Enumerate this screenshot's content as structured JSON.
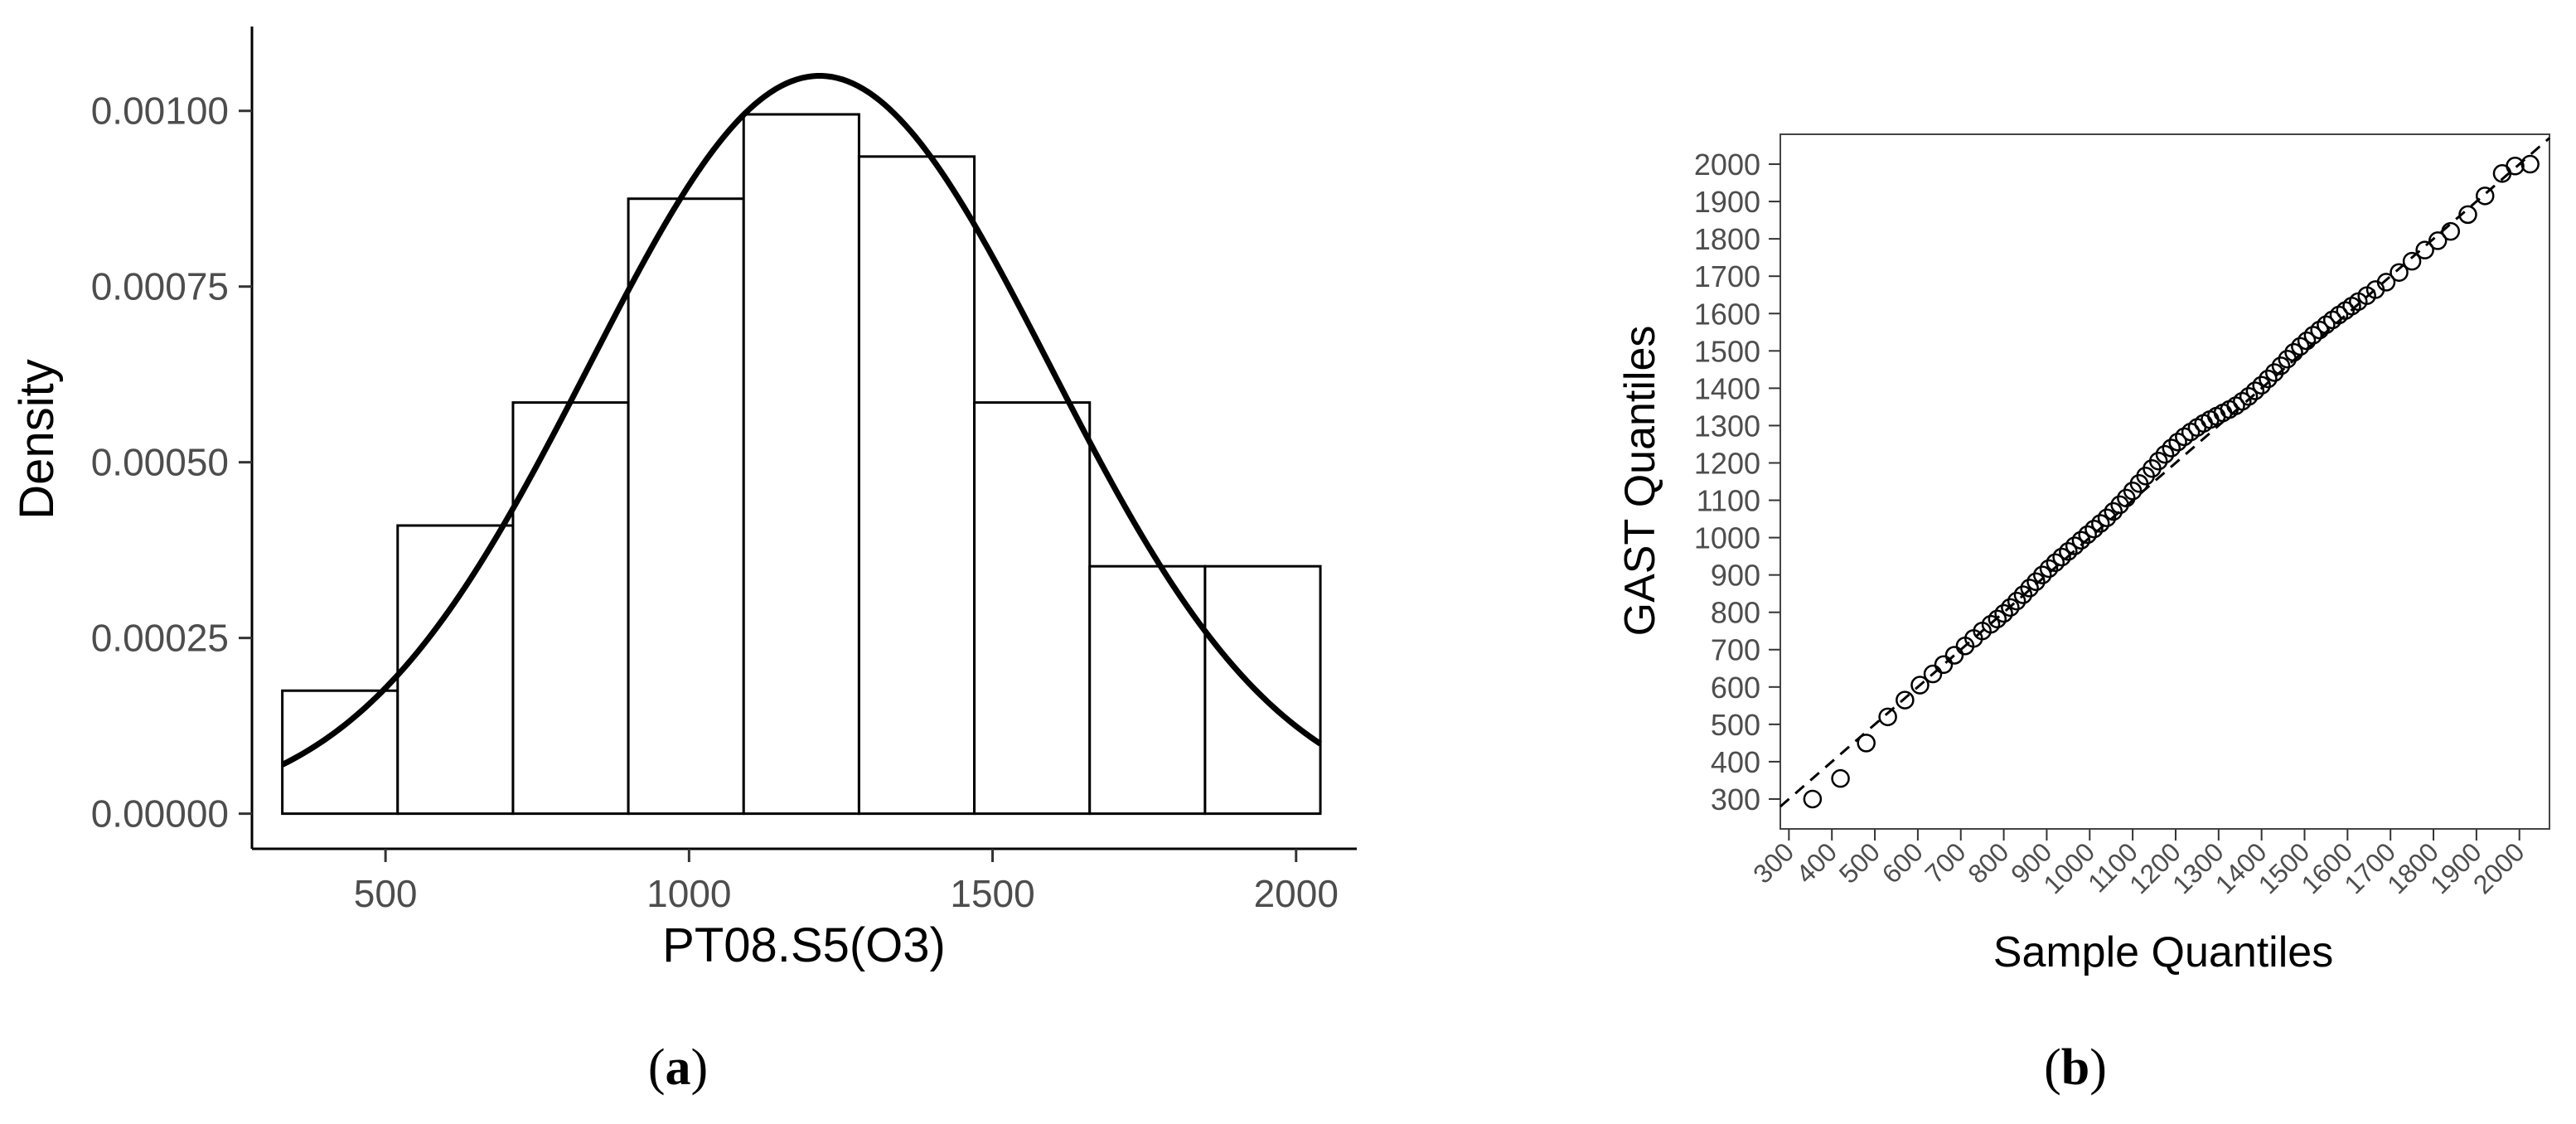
{
  "chart_data": [
    {
      "type": "histogram",
      "panel_label_open": "(",
      "panel_label_letter": "a",
      "panel_label_close": ")",
      "xlabel": "PT08.S5(O3)",
      "ylabel": "Density",
      "xlim": [
        280,
        2100
      ],
      "ylim": [
        -5e-05,
        0.00112
      ],
      "x_ticks": [
        500,
        1000,
        1500,
        2000
      ],
      "x_tick_labels": [
        "500",
        "1000",
        "1500",
        "2000"
      ],
      "y_ticks": [
        0,
        0.00025,
        0.0005,
        0.00075,
        0.001
      ],
      "y_tick_labels": [
        "0.00000",
        "0.00025",
        "0.00050",
        "0.00075",
        "0.00100"
      ],
      "bins": [
        {
          "start": 330,
          "end": 520,
          "density": 0.000175
        },
        {
          "start": 520,
          "end": 710,
          "density": 0.00041
        },
        {
          "start": 710,
          "end": 900,
          "density": 0.000585
        },
        {
          "start": 900,
          "end": 1090,
          "density": 0.000875
        },
        {
          "start": 1090,
          "end": 1280,
          "density": 0.000995
        },
        {
          "start": 1280,
          "end": 1470,
          "density": 0.000935
        },
        {
          "start": 1470,
          "end": 1660,
          "density": 0.000585
        },
        {
          "start": 1660,
          "end": 1850,
          "density": 0.000352
        },
        {
          "start": 1850,
          "end": 2040,
          "density": 0.000352
        }
      ],
      "density_curve": {
        "mean": 1215,
        "sd": 380,
        "x_range": [
          330,
          2040
        ]
      }
    },
    {
      "type": "scatter",
      "panel_label_open": "(",
      "panel_label_letter": "b",
      "panel_label_close": ")",
      "xlabel": "Sample Quantiles",
      "ylabel": "GAST Quantiles",
      "xlim": [
        280,
        2070
      ],
      "ylim": [
        220,
        2080
      ],
      "x_ticks": [
        300,
        400,
        500,
        600,
        700,
        800,
        900,
        1000,
        1100,
        1200,
        1300,
        1400,
        1500,
        1600,
        1700,
        1800,
        1900,
        2000
      ],
      "x_tick_labels": [
        "300",
        "400",
        "500",
        "600",
        "700",
        "800",
        "900",
        "1000",
        "1100",
        "1200",
        "1300",
        "1400",
        "1500",
        "1600",
        "1700",
        "1800",
        "1900",
        "2000"
      ],
      "y_ticks": [
        300,
        400,
        500,
        600,
        700,
        800,
        900,
        1000,
        1100,
        1200,
        1300,
        1400,
        1500,
        1600,
        1700,
        1800,
        1900,
        2000
      ],
      "y_tick_labels": [
        "300",
        "400",
        "500",
        "600",
        "700",
        "800",
        "900",
        "1000",
        "1100",
        "1200",
        "1300",
        "1400",
        "1500",
        "1600",
        "1700",
        "1800",
        "1900",
        "2000"
      ],
      "reference_line": {
        "x": [
          280,
          2070
        ],
        "y": [
          280,
          2070
        ]
      },
      "points_x": [
        355,
        420,
        480,
        530,
        570,
        605,
        635,
        660,
        685,
        710,
        730,
        750,
        770,
        785,
        800,
        815,
        830,
        845,
        860,
        875,
        890,
        905,
        920,
        935,
        950,
        965,
        980,
        995,
        1010,
        1025,
        1040,
        1055,
        1070,
        1085,
        1100,
        1115,
        1130,
        1145,
        1160,
        1175,
        1190,
        1205,
        1220,
        1235,
        1250,
        1265,
        1280,
        1295,
        1310,
        1325,
        1340,
        1355,
        1370,
        1385,
        1400,
        1415,
        1430,
        1445,
        1460,
        1475,
        1490,
        1505,
        1520,
        1535,
        1550,
        1565,
        1580,
        1595,
        1610,
        1625,
        1645,
        1665,
        1690,
        1720,
        1750,
        1780,
        1810,
        1840,
        1880,
        1920,
        1960,
        1990,
        2025
      ],
      "points_y": [
        300,
        355,
        450,
        520,
        565,
        605,
        635,
        660,
        685,
        710,
        730,
        750,
        768,
        782,
        797,
        813,
        830,
        847,
        865,
        882,
        900,
        917,
        933,
        948,
        963,
        978,
        993,
        1008,
        1023,
        1038,
        1053,
        1070,
        1088,
        1106,
        1125,
        1145,
        1165,
        1185,
        1205,
        1223,
        1240,
        1256,
        1270,
        1283,
        1295,
        1306,
        1316,
        1325,
        1334,
        1343,
        1353,
        1365,
        1378,
        1393,
        1408,
        1425,
        1442,
        1460,
        1478,
        1496,
        1512,
        1527,
        1542,
        1556,
        1570,
        1583,
        1596,
        1608,
        1620,
        1632,
        1648,
        1664,
        1684,
        1710,
        1740,
        1770,
        1795,
        1820,
        1865,
        1915,
        1975,
        1995,
        2000
      ]
    }
  ]
}
